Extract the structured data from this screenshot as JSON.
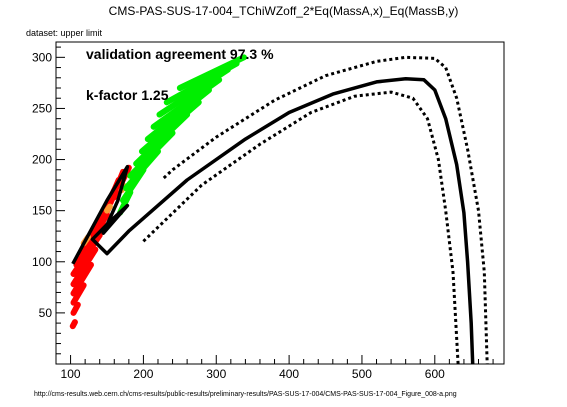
{
  "title": "CMS-PAS-SUS-17-004_TChiWZoff_2*Eq(MassA,x)_Eq(MassB,y)",
  "dataset_label": "dataset: upper limit",
  "annotations": {
    "agreement": "validation agreement 97.3 %",
    "kfactor": "k-factor 1.25"
  },
  "source_url": "http://cms-results.web.cern.ch/cms-results/public-results/preliminary-results/PAS-SUS-17-004/CMS-PAS-SUS-17-004_Figure_008-a.png",
  "colors": {
    "excluded": "#ff0000",
    "allowed": "#00ee00",
    "borderline": "#ff9933",
    "contour": "#000000"
  },
  "chart_data": {
    "type": "scatter",
    "xlim": [
      80,
      695
    ],
    "ylim": [
      0,
      315
    ],
    "xticks": [
      100,
      200,
      300,
      400,
      500,
      600
    ],
    "yticks": [
      50,
      100,
      150,
      200,
      250,
      300
    ],
    "grid": false,
    "legend": "none",
    "bands": [
      {
        "name": "excluded",
        "color": "#ff0000",
        "segments": [
          {
            "x1": 103,
            "y1": 37,
            "x2": 106,
            "y2": 41
          },
          {
            "x1": 104,
            "y1": 50,
            "x2": 110,
            "y2": 58
          },
          {
            "x1": 104,
            "y1": 60,
            "x2": 118,
            "y2": 77
          },
          {
            "x1": 104,
            "y1": 69,
            "x2": 128,
            "y2": 97
          },
          {
            "x1": 104,
            "y1": 78,
            "x2": 134,
            "y2": 112
          },
          {
            "x1": 104,
            "y1": 88,
            "x2": 140,
            "y2": 126
          },
          {
            "x1": 108,
            "y1": 97,
            "x2": 146,
            "y2": 136
          },
          {
            "x1": 116,
            "y1": 108,
            "x2": 150,
            "y2": 146
          },
          {
            "x1": 124,
            "y1": 118,
            "x2": 152,
            "y2": 152
          },
          {
            "x1": 132,
            "y1": 128,
            "x2": 156,
            "y2": 162
          },
          {
            "x1": 140,
            "y1": 140,
            "x2": 160,
            "y2": 170
          },
          {
            "x1": 148,
            "y1": 150,
            "x2": 166,
            "y2": 180
          },
          {
            "x1": 155,
            "y1": 158,
            "x2": 172,
            "y2": 188
          },
          {
            "x1": 160,
            "y1": 163,
            "x2": 180,
            "y2": 192
          }
        ]
      },
      {
        "name": "borderline",
        "color": "#ff9933",
        "segments": [
          {
            "x1": 118,
            "y1": 118,
            "x2": 124,
            "y2": 124
          },
          {
            "x1": 150,
            "y1": 150,
            "x2": 154,
            "y2": 154
          },
          {
            "x1": 170,
            "y1": 170,
            "x2": 174,
            "y2": 174
          }
        ]
      },
      {
        "name": "allowed",
        "color": "#00ee00",
        "segments": [
          {
            "x1": 168,
            "y1": 148,
            "x2": 182,
            "y2": 168
          },
          {
            "x1": 172,
            "y1": 160,
            "x2": 200,
            "y2": 190
          },
          {
            "x1": 176,
            "y1": 172,
            "x2": 220,
            "y2": 208
          },
          {
            "x1": 182,
            "y1": 184,
            "x2": 240,
            "y2": 226
          },
          {
            "x1": 190,
            "y1": 196,
            "x2": 260,
            "y2": 244
          },
          {
            "x1": 198,
            "y1": 208,
            "x2": 276,
            "y2": 256
          },
          {
            "x1": 206,
            "y1": 220,
            "x2": 290,
            "y2": 268
          },
          {
            "x1": 214,
            "y1": 232,
            "x2": 304,
            "y2": 278
          },
          {
            "x1": 222,
            "y1": 244,
            "x2": 316,
            "y2": 288
          },
          {
            "x1": 232,
            "y1": 256,
            "x2": 328,
            "y2": 294
          },
          {
            "x1": 250,
            "y1": 270,
            "x2": 338,
            "y2": 300
          }
        ]
      }
    ],
    "contours": [
      {
        "name": "expected",
        "dashed": false,
        "points": [
          [
            103,
            98
          ],
          [
            150,
            160
          ],
          [
            178,
            193
          ],
          [
            165,
            160
          ],
          [
            145,
            128
          ],
          [
            178,
            155
          ],
          [
            155,
            140
          ],
          [
            130,
            122
          ],
          [
            150,
            108
          ],
          [
            180,
            130
          ],
          [
            260,
            180
          ],
          [
            340,
            220
          ],
          [
            400,
            246
          ],
          [
            460,
            264
          ],
          [
            520,
            276
          ],
          [
            560,
            279
          ],
          [
            585,
            278
          ],
          [
            600,
            268
          ],
          [
            615,
            240
          ],
          [
            630,
            195
          ],
          [
            640,
            148
          ],
          [
            645,
            100
          ],
          [
            650,
            40
          ],
          [
            652,
            0
          ]
        ]
      },
      {
        "name": "expected-plus",
        "dashed": true,
        "points": [
          [
            228,
            182
          ],
          [
            240,
            190
          ],
          [
            300,
            222
          ],
          [
            380,
            258
          ],
          [
            450,
            282
          ],
          [
            520,
            296
          ],
          [
            560,
            300
          ],
          [
            600,
            299
          ],
          [
            615,
            290
          ],
          [
            630,
            260
          ],
          [
            645,
            210
          ],
          [
            660,
            150
          ],
          [
            668,
            90
          ],
          [
            672,
            0
          ]
        ]
      },
      {
        "name": "expected-minus",
        "dashed": true,
        "points": [
          [
            200,
            120
          ],
          [
            280,
            175
          ],
          [
            360,
            215
          ],
          [
            430,
            246
          ],
          [
            490,
            262
          ],
          [
            540,
            266
          ],
          [
            570,
            260
          ],
          [
            590,
            240
          ],
          [
            605,
            200
          ],
          [
            615,
            150
          ],
          [
            625,
            90
          ],
          [
            632,
            0
          ]
        ]
      }
    ]
  }
}
